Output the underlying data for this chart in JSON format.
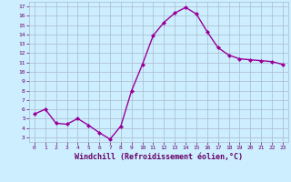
{
  "x": [
    0,
    1,
    2,
    3,
    4,
    5,
    6,
    7,
    8,
    9,
    10,
    11,
    12,
    13,
    14,
    15,
    16,
    17,
    18,
    19,
    20,
    21,
    22,
    23
  ],
  "y": [
    5.5,
    6.0,
    4.5,
    4.4,
    5.0,
    4.3,
    3.5,
    2.8,
    4.2,
    8.0,
    10.8,
    13.9,
    15.3,
    16.3,
    16.9,
    16.2,
    14.3,
    12.6,
    11.8,
    11.4,
    11.3,
    11.2,
    11.1,
    10.8
  ],
  "line_color": "#990099",
  "marker": "D",
  "marker_size": 2.0,
  "line_width": 1.0,
  "xlabel": "Windchill (Refroidissement éolien,°C)",
  "xlim": [
    -0.5,
    23.5
  ],
  "ylim": [
    2.5,
    17.5
  ],
  "yticks": [
    3,
    4,
    5,
    6,
    7,
    8,
    9,
    10,
    11,
    12,
    13,
    14,
    15,
    16,
    17
  ],
  "xticks": [
    0,
    1,
    2,
    3,
    4,
    5,
    6,
    7,
    8,
    9,
    10,
    11,
    12,
    13,
    14,
    15,
    16,
    17,
    18,
    19,
    20,
    21,
    22,
    23
  ],
  "bg_color": "#cceeff",
  "grid_color": "#aabbcc",
  "line_label_color": "#660066",
  "tick_label_color": "#660066"
}
